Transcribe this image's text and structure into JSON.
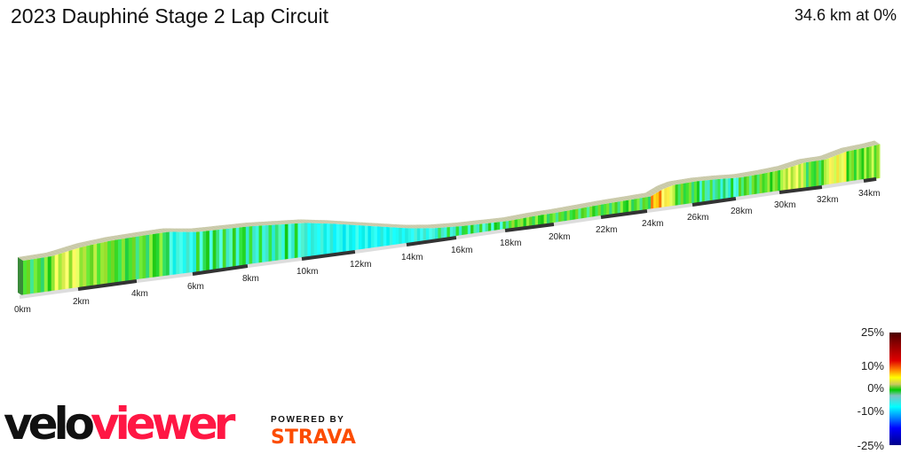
{
  "header": {
    "title": "2023 Dauphiné Stage 2 Lap Circuit",
    "summary": "34.6 km at 0%"
  },
  "chart_data": {
    "type": "area",
    "style": "3d elevation profile coloured by gradient",
    "total_distance_km": 34.6,
    "avg_gradient_pct": 0,
    "x_ticks": [
      "0km",
      "2km",
      "4km",
      "6km",
      "8km",
      "10km",
      "12km",
      "14km",
      "16km",
      "18km",
      "20km",
      "22km",
      "24km",
      "26km",
      "28km",
      "30km",
      "32km",
      "34km"
    ],
    "distance_km": [
      0,
      1,
      2,
      3,
      4,
      5,
      6,
      7,
      8,
      9,
      10,
      11,
      12,
      13,
      14,
      15,
      16,
      17,
      18,
      19,
      20,
      21,
      22,
      23,
      24,
      24.5,
      25,
      26,
      27,
      28,
      29,
      30,
      31,
      32,
      33,
      34,
      34.6
    ],
    "relative_elevation": [
      40,
      41,
      47,
      50,
      51,
      52,
      48,
      47,
      46,
      44,
      42,
      37,
      31,
      25,
      19,
      15,
      13,
      12,
      11,
      13,
      14,
      15,
      16,
      17,
      18,
      25,
      29,
      30,
      29,
      27,
      28,
      30,
      36,
      37,
      44,
      46,
      48
    ],
    "gradient_legend": {
      "labels": [
        "25%",
        "10%",
        "0%",
        "-10%",
        "-25%"
      ],
      "colors": [
        "#4a0000",
        "#e00000",
        "#ffff00",
        "#00cc00",
        "#00ffff",
        "#0000ff",
        "#00008a"
      ]
    }
  },
  "branding": {
    "logo_a": "velo",
    "logo_b": "viewer",
    "powered_by": "POWERED BY",
    "strava": "STRAVA"
  }
}
